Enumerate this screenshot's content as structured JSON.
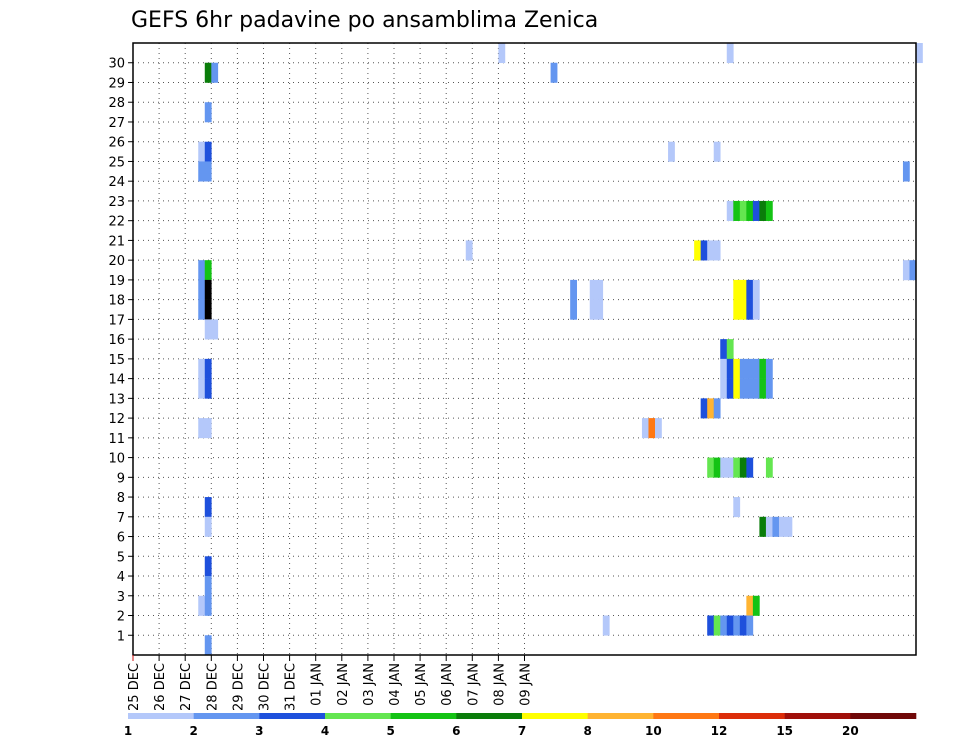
{
  "chart_data": {
    "type": "heatmap",
    "title": "GEFS 6hr padavine po ansamblima Zenica",
    "x_tick_labels": [
      "25 DEC",
      "26 DEC",
      "27 DEC",
      "28 DEC",
      "29 DEC",
      "30 DEC",
      "31 DEC",
      "01 JAN",
      "02 JAN",
      "03 JAN",
      "04 JAN",
      "05 JAN",
      "06 JAN",
      "07 JAN",
      "08 JAN",
      "09 JAN"
    ],
    "y_tick_labels": [
      "1",
      "2",
      "3",
      "4",
      "5",
      "6",
      "7",
      "8",
      "9",
      "10",
      "11",
      "12",
      "13",
      "14",
      "15",
      "16",
      "17",
      "18",
      "19",
      "20",
      "21",
      "22",
      "23",
      "24",
      "25",
      "26",
      "27",
      "28",
      "29",
      "30"
    ],
    "x_unit": "6-hour steps",
    "grid": true,
    "colorbar": {
      "labels": [
        "1",
        "2",
        "3",
        "4",
        "5",
        "6",
        "7",
        "8",
        "10",
        "12",
        "15",
        "20"
      ],
      "colors": [
        "#b4c8fa",
        "#6496f0",
        "#1e50dc",
        "#64e650",
        "#14c314",
        "#0a7d0a",
        "#ffff00",
        "#ffb432",
        "#ff7814",
        "#dc2d0a",
        "#a00f0a",
        "#700808"
      ]
    },
    "cells": [
      {
        "m": 30,
        "s": [
          [
            56,
            1
          ],
          [
            91,
            1
          ],
          [
            120,
            1
          ]
        ]
      },
      {
        "m": 29,
        "s": [
          [
            11,
            6
          ],
          [
            12,
            2
          ],
          [
            64,
            2
          ]
        ]
      },
      {
        "m": 27,
        "s": [
          [
            11,
            2
          ]
        ]
      },
      {
        "m": 25,
        "s": [
          [
            10,
            1
          ],
          [
            11,
            3
          ],
          [
            82,
            1
          ],
          [
            89,
            1
          ]
        ]
      },
      {
        "m": 24,
        "s": [
          [
            10,
            2
          ],
          [
            11,
            2
          ],
          [
            118,
            2
          ]
        ]
      },
      {
        "m": 22,
        "s": [
          [
            91,
            1
          ],
          [
            92,
            5
          ],
          [
            93,
            4
          ],
          [
            94,
            5
          ],
          [
            95,
            3
          ],
          [
            96,
            6
          ],
          [
            97,
            5
          ]
        ]
      },
      {
        "m": 20,
        "s": [
          [
            51,
            1
          ],
          [
            86,
            7
          ],
          [
            87,
            3
          ],
          [
            88,
            1
          ],
          [
            89,
            1
          ]
        ]
      },
      {
        "m": 19,
        "s": [
          [
            10,
            2
          ],
          [
            11,
            5
          ],
          [
            118,
            1
          ],
          [
            119,
            2
          ]
        ]
      },
      {
        "m": 18,
        "s": [
          [
            10,
            2
          ],
          [
            11,
            13
          ],
          [
            67,
            2
          ],
          [
            70,
            1
          ],
          [
            71,
            1
          ],
          [
            92,
            7
          ],
          [
            93,
            7
          ],
          [
            94,
            3
          ],
          [
            95,
            1
          ]
        ]
      },
      {
        "m": 17,
        "s": [
          [
            10,
            2
          ],
          [
            11,
            13
          ],
          [
            67,
            2
          ],
          [
            70,
            1
          ],
          [
            71,
            1
          ],
          [
            92,
            7
          ],
          [
            93,
            7
          ],
          [
            94,
            3
          ],
          [
            95,
            1
          ]
        ]
      },
      {
        "m": 16,
        "s": [
          [
            11,
            1
          ],
          [
            12,
            1
          ]
        ]
      },
      {
        "m": 15,
        "s": [
          [
            90,
            3
          ],
          [
            91,
            4
          ]
        ]
      },
      {
        "m": 14,
        "s": [
          [
            10,
            1
          ],
          [
            11,
            3
          ],
          [
            90,
            1
          ],
          [
            91,
            3
          ],
          [
            92,
            7
          ],
          [
            93,
            2
          ],
          [
            94,
            2
          ],
          [
            95,
            2
          ],
          [
            96,
            5
          ],
          [
            97,
            2
          ]
        ]
      },
      {
        "m": 13,
        "s": [
          [
            10,
            1
          ],
          [
            11,
            3
          ],
          [
            90,
            1
          ],
          [
            91,
            3
          ],
          [
            92,
            7
          ],
          [
            93,
            2
          ],
          [
            94,
            2
          ],
          [
            95,
            2
          ],
          [
            96,
            5
          ],
          [
            97,
            2
          ]
        ]
      },
      {
        "m": 12,
        "s": [
          [
            87,
            3
          ],
          [
            88,
            8
          ],
          [
            89,
            2
          ]
        ]
      },
      {
        "m": 11,
        "s": [
          [
            10,
            1
          ],
          [
            11,
            1
          ],
          [
            78,
            1
          ],
          [
            79,
            9
          ],
          [
            80,
            1
          ]
        ]
      },
      {
        "m": 9,
        "s": [
          [
            88,
            4
          ],
          [
            89,
            5
          ],
          [
            90,
            1
          ],
          [
            91,
            1
          ],
          [
            92,
            4
          ],
          [
            93,
            6
          ],
          [
            94,
            3
          ],
          [
            97,
            4
          ]
        ]
      },
      {
        "m": 7,
        "s": [
          [
            11,
            3
          ],
          [
            92,
            1
          ]
        ]
      },
      {
        "m": 6,
        "s": [
          [
            11,
            1
          ],
          [
            96,
            6
          ],
          [
            97,
            1
          ],
          [
            98,
            2
          ],
          [
            99,
            1
          ],
          [
            100,
            1
          ]
        ]
      },
      {
        "m": 4,
        "s": [
          [
            11,
            3
          ]
        ]
      },
      {
        "m": 3,
        "s": [
          [
            11,
            2
          ]
        ]
      },
      {
        "m": 2,
        "s": [
          [
            10,
            1
          ],
          [
            11,
            2
          ],
          [
            94,
            8
          ],
          [
            95,
            5
          ]
        ]
      },
      {
        "m": 1,
        "s": [
          [
            72,
            1
          ],
          [
            88,
            3
          ],
          [
            89,
            4
          ],
          [
            90,
            2
          ],
          [
            91,
            3
          ],
          [
            92,
            2
          ],
          [
            93,
            3
          ],
          [
            94,
            2
          ]
        ]
      },
      {
        "m": 0,
        "s": [
          [
            11,
            2
          ]
        ]
      }
    ]
  }
}
